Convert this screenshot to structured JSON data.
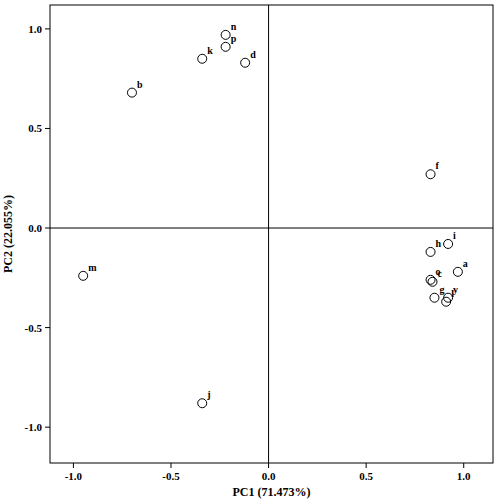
{
  "chart_data": {
    "type": "scatter",
    "x_label": "PC1 (71.473%)",
    "y_label": "PC2 (22.055%)",
    "labels": [
      "b",
      "k",
      "n",
      "p",
      "d",
      "f",
      "h",
      "i",
      "a",
      "o",
      "c",
      "g",
      "y",
      "l",
      "m",
      "j"
    ],
    "x": [
      -0.7,
      -0.34,
      -0.22,
      -0.22,
      -0.12,
      0.83,
      0.83,
      0.92,
      0.97,
      0.83,
      0.84,
      0.85,
      0.92,
      0.91,
      -0.95,
      -0.34
    ],
    "values": [
      0.68,
      0.85,
      0.97,
      0.91,
      0.83,
      0.27,
      -0.12,
      -0.08,
      -0.22,
      -0.26,
      -0.27,
      -0.35,
      -0.35,
      -0.37,
      -0.24,
      -0.88
    ],
    "xlim": [
      -1.12,
      1.15
    ],
    "ylim": [
      -1.18,
      1.12
    ],
    "xticks": [
      {
        "value": -1.0,
        "label": "-1.0"
      },
      {
        "value": -0.5,
        "label": "-0.5"
      },
      {
        "value": 0,
        "label": "0.0"
      },
      {
        "value": 0.5,
        "label": "0.5"
      },
      {
        "value": 1.0,
        "label": "1.0"
      }
    ],
    "yticks": [
      {
        "value": -1.0,
        "label": "-1.0"
      },
      {
        "value": -0.5,
        "label": "-0.5"
      },
      {
        "value": 0,
        "label": "0.0"
      },
      {
        "value": 0.5,
        "label": "0.5"
      },
      {
        "value": 1.0,
        "label": "1.0"
      }
    ],
    "marker": "circle",
    "color": "#000000",
    "grid": false
  }
}
